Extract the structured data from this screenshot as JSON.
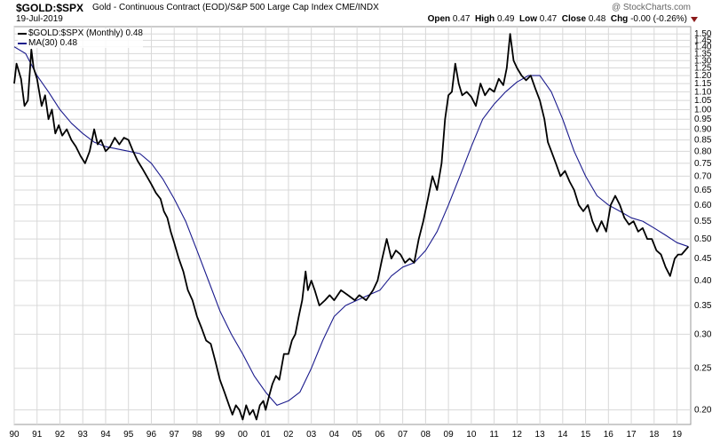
{
  "header": {
    "symbol": "$GOLD:$SPX",
    "description": "Gold - Continuous Contract (EOD)/S&P 500 Large Cap Index  CME/INDX",
    "date": "19-Jul-2019",
    "brand": "@ StockCharts.com",
    "open_label": "Open",
    "open": "0.47",
    "high_label": "High",
    "high": "0.49",
    "low_label": "Low",
    "low": "0.47",
    "close_label": "Close",
    "close": "0.48",
    "chg_label": "Chg",
    "chg": "-0.00 (-0.26%)"
  },
  "legend": {
    "price": "$GOLD:$SPX (Monthly) 0.48",
    "ma": "MA(30) 0.48"
  },
  "colors": {
    "price": "#000000",
    "ma": "#1a1a8c",
    "grid": "#d8d8d8",
    "down": "#8b1a1a"
  },
  "chart_data": {
    "type": "line",
    "title": "$GOLD:$SPX",
    "yscale": "log",
    "ylim": [
      0.185,
      1.56
    ],
    "xlim": [
      1990.0,
      2019.6
    ],
    "y_ticks": [
      "0.20",
      "0.25",
      "0.30",
      "0.35",
      "0.40",
      "0.45",
      "0.50",
      "0.55",
      "0.60",
      "0.65",
      "0.70",
      "0.75",
      "0.80",
      "0.85",
      "0.90",
      "0.95",
      "1.00",
      "1.05",
      "1.10",
      "1.15",
      "1.20",
      "1.25",
      "1.30",
      "1.35",
      "1.40",
      "1.45",
      "1.50"
    ],
    "x_ticks": [
      {
        "label": "90",
        "year": 1990
      },
      {
        "label": "91",
        "year": 1991
      },
      {
        "label": "92",
        "year": 1992
      },
      {
        "label": "93",
        "year": 1993
      },
      {
        "label": "94",
        "year": 1994
      },
      {
        "label": "95",
        "year": 1995
      },
      {
        "label": "96",
        "year": 1996
      },
      {
        "label": "97",
        "year": 1997
      },
      {
        "label": "98",
        "year": 1998
      },
      {
        "label": "99",
        "year": 1999
      },
      {
        "label": "00",
        "year": 2000
      },
      {
        "label": "01",
        "year": 2001
      },
      {
        "label": "02",
        "year": 2002
      },
      {
        "label": "03",
        "year": 2003
      },
      {
        "label": "04",
        "year": 2004
      },
      {
        "label": "05",
        "year": 2005
      },
      {
        "label": "06",
        "year": 2006
      },
      {
        "label": "07",
        "year": 2007
      },
      {
        "label": "08",
        "year": 2008
      },
      {
        "label": "09",
        "year": 2009
      },
      {
        "label": "10",
        "year": 2010
      },
      {
        "label": "11",
        "year": 2011
      },
      {
        "label": "12",
        "year": 2012
      },
      {
        "label": "13",
        "year": 2013
      },
      {
        "label": "14",
        "year": 2014
      },
      {
        "label": "15",
        "year": 2015
      },
      {
        "label": "16",
        "year": 2016
      },
      {
        "label": "17",
        "year": 2017
      },
      {
        "label": "18",
        "year": 2018
      },
      {
        "label": "19",
        "year": 2019
      }
    ],
    "series": [
      {
        "name": "$GOLD:$SPX (Monthly)",
        "points": [
          [
            1990.0,
            1.15
          ],
          [
            1990.1,
            1.28
          ],
          [
            1990.3,
            1.18
          ],
          [
            1990.45,
            1.02
          ],
          [
            1990.6,
            1.05
          ],
          [
            1990.75,
            1.38
          ],
          [
            1990.85,
            1.25
          ],
          [
            1991.0,
            1.18
          ],
          [
            1991.2,
            1.02
          ],
          [
            1991.35,
            1.08
          ],
          [
            1991.5,
            0.95
          ],
          [
            1991.65,
            1.0
          ],
          [
            1991.8,
            0.88
          ],
          [
            1991.95,
            0.92
          ],
          [
            1992.1,
            0.87
          ],
          [
            1992.3,
            0.9
          ],
          [
            1992.5,
            0.85
          ],
          [
            1992.7,
            0.82
          ],
          [
            1992.9,
            0.78
          ],
          [
            1993.1,
            0.75
          ],
          [
            1993.3,
            0.8
          ],
          [
            1993.5,
            0.9
          ],
          [
            1993.65,
            0.83
          ],
          [
            1993.8,
            0.85
          ],
          [
            1994.0,
            0.8
          ],
          [
            1994.2,
            0.82
          ],
          [
            1994.4,
            0.86
          ],
          [
            1994.6,
            0.83
          ],
          [
            1994.8,
            0.86
          ],
          [
            1995.0,
            0.85
          ],
          [
            1995.2,
            0.8
          ],
          [
            1995.4,
            0.76
          ],
          [
            1995.6,
            0.73
          ],
          [
            1995.8,
            0.7
          ],
          [
            1996.0,
            0.67
          ],
          [
            1996.2,
            0.64
          ],
          [
            1996.4,
            0.62
          ],
          [
            1996.55,
            0.58
          ],
          [
            1996.7,
            0.56
          ],
          [
            1996.85,
            0.52
          ],
          [
            1997.0,
            0.49
          ],
          [
            1997.2,
            0.45
          ],
          [
            1997.4,
            0.42
          ],
          [
            1997.6,
            0.38
          ],
          [
            1997.8,
            0.36
          ],
          [
            1998.0,
            0.33
          ],
          [
            1998.2,
            0.31
          ],
          [
            1998.4,
            0.29
          ],
          [
            1998.6,
            0.285
          ],
          [
            1998.8,
            0.26
          ],
          [
            1999.0,
            0.235
          ],
          [
            1999.2,
            0.22
          ],
          [
            1999.4,
            0.205
          ],
          [
            1999.55,
            0.195
          ],
          [
            1999.7,
            0.205
          ],
          [
            1999.85,
            0.2
          ],
          [
            2000.0,
            0.19
          ],
          [
            2000.15,
            0.205
          ],
          [
            2000.3,
            0.195
          ],
          [
            2000.45,
            0.2
          ],
          [
            2000.6,
            0.19
          ],
          [
            2000.75,
            0.205
          ],
          [
            2000.9,
            0.21
          ],
          [
            2001.0,
            0.2
          ],
          [
            2001.15,
            0.215
          ],
          [
            2001.3,
            0.23
          ],
          [
            2001.45,
            0.24
          ],
          [
            2001.6,
            0.235
          ],
          [
            2001.8,
            0.27
          ],
          [
            2002.0,
            0.27
          ],
          [
            2002.15,
            0.29
          ],
          [
            2002.3,
            0.3
          ],
          [
            2002.45,
            0.33
          ],
          [
            2002.6,
            0.36
          ],
          [
            2002.75,
            0.42
          ],
          [
            2002.85,
            0.38
          ],
          [
            2003.0,
            0.4
          ],
          [
            2003.15,
            0.38
          ],
          [
            2003.35,
            0.35
          ],
          [
            2003.6,
            0.36
          ],
          [
            2003.8,
            0.37
          ],
          [
            2004.0,
            0.36
          ],
          [
            2004.3,
            0.38
          ],
          [
            2004.6,
            0.37
          ],
          [
            2004.9,
            0.36
          ],
          [
            2005.1,
            0.37
          ],
          [
            2005.4,
            0.36
          ],
          [
            2005.7,
            0.38
          ],
          [
            2005.9,
            0.4
          ],
          [
            2006.1,
            0.45
          ],
          [
            2006.3,
            0.5
          ],
          [
            2006.5,
            0.45
          ],
          [
            2006.7,
            0.47
          ],
          [
            2006.9,
            0.46
          ],
          [
            2007.1,
            0.44
          ],
          [
            2007.3,
            0.45
          ],
          [
            2007.5,
            0.44
          ],
          [
            2007.7,
            0.5
          ],
          [
            2007.9,
            0.55
          ],
          [
            2008.1,
            0.62
          ],
          [
            2008.3,
            0.7
          ],
          [
            2008.5,
            0.65
          ],
          [
            2008.7,
            0.75
          ],
          [
            2008.85,
            0.95
          ],
          [
            2009.0,
            1.08
          ],
          [
            2009.15,
            1.1
          ],
          [
            2009.3,
            1.28
          ],
          [
            2009.45,
            1.15
          ],
          [
            2009.6,
            1.08
          ],
          [
            2009.8,
            1.1
          ],
          [
            2010.0,
            1.07
          ],
          [
            2010.2,
            1.02
          ],
          [
            2010.4,
            1.15
          ],
          [
            2010.6,
            1.08
          ],
          [
            2010.8,
            1.12
          ],
          [
            2011.0,
            1.1
          ],
          [
            2011.2,
            1.18
          ],
          [
            2011.4,
            1.14
          ],
          [
            2011.55,
            1.25
          ],
          [
            2011.7,
            1.5
          ],
          [
            2011.85,
            1.3
          ],
          [
            2012.0,
            1.25
          ],
          [
            2012.2,
            1.2
          ],
          [
            2012.4,
            1.17
          ],
          [
            2012.6,
            1.2
          ],
          [
            2012.8,
            1.12
          ],
          [
            2013.0,
            1.05
          ],
          [
            2013.2,
            0.95
          ],
          [
            2013.35,
            0.84
          ],
          [
            2013.5,
            0.8
          ],
          [
            2013.7,
            0.75
          ],
          [
            2013.9,
            0.7
          ],
          [
            2014.1,
            0.72
          ],
          [
            2014.3,
            0.68
          ],
          [
            2014.5,
            0.65
          ],
          [
            2014.7,
            0.6
          ],
          [
            2014.9,
            0.58
          ],
          [
            2015.1,
            0.6
          ],
          [
            2015.3,
            0.55
          ],
          [
            2015.5,
            0.52
          ],
          [
            2015.7,
            0.55
          ],
          [
            2015.9,
            0.52
          ],
          [
            2016.1,
            0.6
          ],
          [
            2016.3,
            0.63
          ],
          [
            2016.5,
            0.6
          ],
          [
            2016.7,
            0.56
          ],
          [
            2016.9,
            0.54
          ],
          [
            2017.1,
            0.55
          ],
          [
            2017.3,
            0.52
          ],
          [
            2017.5,
            0.53
          ],
          [
            2017.7,
            0.5
          ],
          [
            2017.9,
            0.5
          ],
          [
            2018.1,
            0.47
          ],
          [
            2018.3,
            0.46
          ],
          [
            2018.5,
            0.43
          ],
          [
            2018.7,
            0.41
          ],
          [
            2018.9,
            0.45
          ],
          [
            2019.05,
            0.46
          ],
          [
            2019.2,
            0.46
          ],
          [
            2019.35,
            0.47
          ],
          [
            2019.5,
            0.48
          ]
        ]
      },
      {
        "name": "MA(30)",
        "points": [
          [
            1990.0,
            1.4
          ],
          [
            1990.5,
            1.35
          ],
          [
            1991.0,
            1.2
          ],
          [
            1991.5,
            1.1
          ],
          [
            1992.0,
            1.0
          ],
          [
            1992.5,
            0.93
          ],
          [
            1993.0,
            0.88
          ],
          [
            1993.5,
            0.84
          ],
          [
            1994.0,
            0.82
          ],
          [
            1994.5,
            0.81
          ],
          [
            1995.0,
            0.8
          ],
          [
            1995.5,
            0.79
          ],
          [
            1996.0,
            0.75
          ],
          [
            1996.5,
            0.69
          ],
          [
            1997.0,
            0.62
          ],
          [
            1997.5,
            0.55
          ],
          [
            1998.0,
            0.47
          ],
          [
            1998.5,
            0.4
          ],
          [
            1999.0,
            0.34
          ],
          [
            1999.5,
            0.3
          ],
          [
            2000.0,
            0.27
          ],
          [
            2000.5,
            0.24
          ],
          [
            2001.0,
            0.22
          ],
          [
            2001.5,
            0.205
          ],
          [
            2002.0,
            0.21
          ],
          [
            2002.5,
            0.22
          ],
          [
            2003.0,
            0.25
          ],
          [
            2003.5,
            0.29
          ],
          [
            2004.0,
            0.33
          ],
          [
            2004.5,
            0.35
          ],
          [
            2005.0,
            0.36
          ],
          [
            2005.5,
            0.37
          ],
          [
            2006.0,
            0.38
          ],
          [
            2006.5,
            0.41
          ],
          [
            2007.0,
            0.43
          ],
          [
            2007.5,
            0.44
          ],
          [
            2008.0,
            0.47
          ],
          [
            2008.5,
            0.52
          ],
          [
            2009.0,
            0.6
          ],
          [
            2009.5,
            0.7
          ],
          [
            2010.0,
            0.82
          ],
          [
            2010.5,
            0.95
          ],
          [
            2011.0,
            1.03
          ],
          [
            2011.5,
            1.1
          ],
          [
            2012.0,
            1.16
          ],
          [
            2012.5,
            1.2
          ],
          [
            2013.0,
            1.2
          ],
          [
            2013.5,
            1.1
          ],
          [
            2014.0,
            0.95
          ],
          [
            2014.5,
            0.8
          ],
          [
            2015.0,
            0.7
          ],
          [
            2015.5,
            0.63
          ],
          [
            2016.0,
            0.6
          ],
          [
            2016.5,
            0.58
          ],
          [
            2017.0,
            0.56
          ],
          [
            2017.5,
            0.55
          ],
          [
            2018.0,
            0.53
          ],
          [
            2018.5,
            0.51
          ],
          [
            2019.0,
            0.49
          ],
          [
            2019.5,
            0.48
          ]
        ]
      }
    ]
  }
}
